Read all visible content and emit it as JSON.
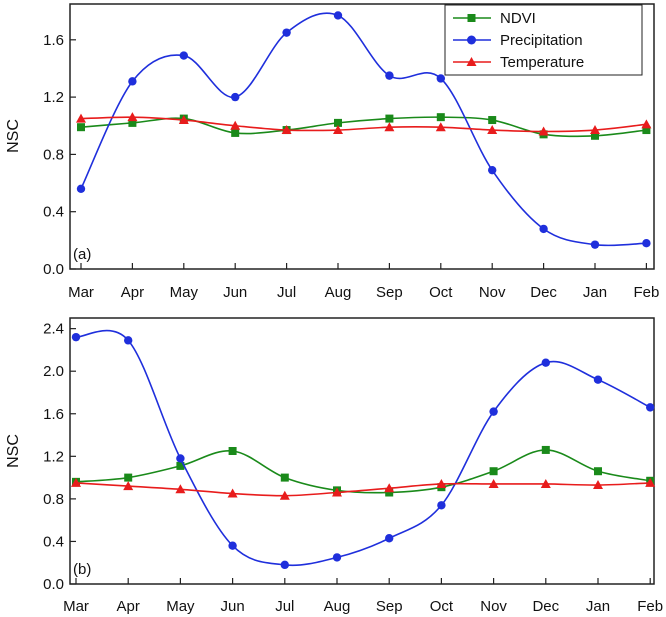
{
  "chart_data": [
    {
      "type": "line",
      "panel_label": "(a)",
      "ylabel": "NSC",
      "xlabel": "",
      "ylim": [
        0.0,
        1.85
      ],
      "yticks": [
        "0.0",
        "0.4",
        "0.8",
        "1.2",
        "1.6"
      ],
      "categories": [
        "Mar",
        "Apr",
        "May",
        "Jun",
        "Jul",
        "Aug",
        "Sep",
        "Oct",
        "Nov",
        "Dec",
        "Jan",
        "Feb"
      ],
      "legend_position": "top-right",
      "series": [
        {
          "name": "NDVI",
          "color": "#1a8a1a",
          "marker": "square",
          "values": [
            0.99,
            1.02,
            1.05,
            0.95,
            0.97,
            1.02,
            1.05,
            1.06,
            1.04,
            0.94,
            0.93,
            0.97
          ]
        },
        {
          "name": "Precipitation",
          "color": "#1f2fdc",
          "marker": "circle",
          "values": [
            0.56,
            1.31,
            1.49,
            1.2,
            1.65,
            1.77,
            1.35,
            1.33,
            0.69,
            0.28,
            0.17,
            0.18
          ]
        },
        {
          "name": "Temperature",
          "color": "#e81c1c",
          "marker": "triangle",
          "values": [
            1.05,
            1.06,
            1.04,
            1.0,
            0.97,
            0.97,
            0.99,
            0.99,
            0.97,
            0.96,
            0.97,
            1.01
          ]
        }
      ]
    },
    {
      "type": "line",
      "panel_label": "(b)",
      "ylabel": "NSC",
      "xlabel": "",
      "ylim": [
        0.0,
        2.5
      ],
      "yticks": [
        "0.0",
        "0.4",
        "0.8",
        "1.2",
        "1.6",
        "2.0",
        "2.4"
      ],
      "categories": [
        "Mar",
        "Apr",
        "May",
        "Jun",
        "Jul",
        "Aug",
        "Sep",
        "Oct",
        "Nov",
        "Dec",
        "Jan",
        "Feb"
      ],
      "series": [
        {
          "name": "NDVI",
          "color": "#1a8a1a",
          "marker": "square",
          "values": [
            0.96,
            1.0,
            1.11,
            1.25,
            1.0,
            0.88,
            0.86,
            0.91,
            1.06,
            1.26,
            1.06,
            0.97
          ]
        },
        {
          "name": "Precipitation",
          "color": "#1f2fdc",
          "marker": "circle",
          "values": [
            2.32,
            2.29,
            1.18,
            0.36,
            0.18,
            0.25,
            0.43,
            0.74,
            1.62,
            2.08,
            1.92,
            1.66
          ]
        },
        {
          "name": "Temperature",
          "color": "#e81c1c",
          "marker": "triangle",
          "values": [
            0.95,
            0.92,
            0.89,
            0.85,
            0.83,
            0.86,
            0.9,
            0.94,
            0.94,
            0.94,
            0.93,
            0.95
          ]
        }
      ]
    }
  ]
}
